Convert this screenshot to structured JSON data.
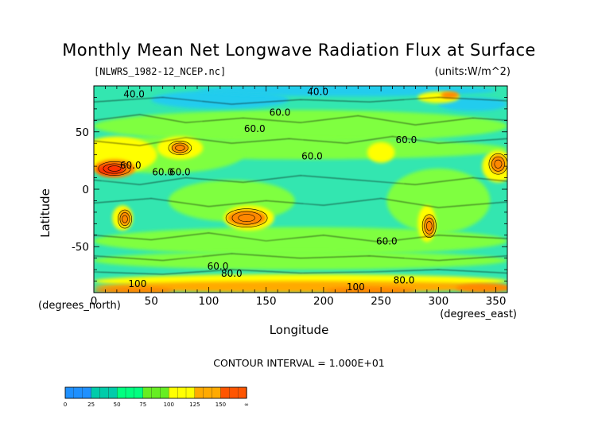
{
  "chart_data": {
    "type": "heatmap",
    "title": "Monthly Mean Net Longwave Radiation Flux at Surface",
    "subtitle_left": "[NLWRS_1982-12_NCEP.nc]",
    "subtitle_right": "(units:W/m^2)",
    "xlabel": "Longitude",
    "ylabel": "Latitude",
    "x_unit_label": "(degrees_east)",
    "y_unit_label": "(degrees_north)",
    "xlim": [
      0,
      360
    ],
    "ylim": [
      -90,
      90
    ],
    "x_ticks": [
      0,
      50,
      100,
      150,
      200,
      250,
      300,
      350
    ],
    "y_ticks": [
      -50,
      0,
      50
    ],
    "contour_interval_text": "CONTOUR INTERVAL = 1.000E+01",
    "contour_labels": [
      {
        "text": "40.0",
        "lon": 35,
        "lat": 80
      },
      {
        "text": "40.0",
        "lon": 195,
        "lat": 82
      },
      {
        "text": "60.0",
        "lon": 162,
        "lat": 64
      },
      {
        "text": "60.0",
        "lon": 140,
        "lat": 50
      },
      {
        "text": "60.0",
        "lon": 272,
        "lat": 40
      },
      {
        "text": "60.0",
        "lon": 190,
        "lat": 26
      },
      {
        "text": "60.0",
        "lon": 32,
        "lat": 18
      },
      {
        "text": "60.0",
        "lon": 60,
        "lat": 12
      },
      {
        "text": "60.0",
        "lon": 75,
        "lat": 12
      },
      {
        "text": "60.0",
        "lon": 255,
        "lat": -48
      },
      {
        "text": "60.0",
        "lon": 108,
        "lat": -70
      },
      {
        "text": "80.0",
        "lon": 120,
        "lat": -76
      },
      {
        "text": "80.0",
        "lon": 270,
        "lat": -82
      },
      {
        "text": "100",
        "lon": 38,
        "lat": -85
      },
      {
        "text": "100",
        "lon": 228,
        "lat": -88
      }
    ],
    "colorbar": {
      "levels": [
        "0",
        "25",
        "50",
        "75",
        "100",
        "125",
        "150",
        "∞"
      ],
      "colors": [
        "#1e90ff",
        "#00ccaa",
        "#00ff80",
        "#66ee22",
        "#ffff00",
        "#ffaa00",
        "#ff5500",
        "#ff0000"
      ]
    },
    "land_colors": {
      "ocean_low": "#33e6b0",
      "ocean_mid": "#7fff40",
      "arctic": "#22ccee",
      "desert": "#ff8800",
      "hot": "#ff3300",
      "antarctic": "#ffaa00"
    }
  }
}
